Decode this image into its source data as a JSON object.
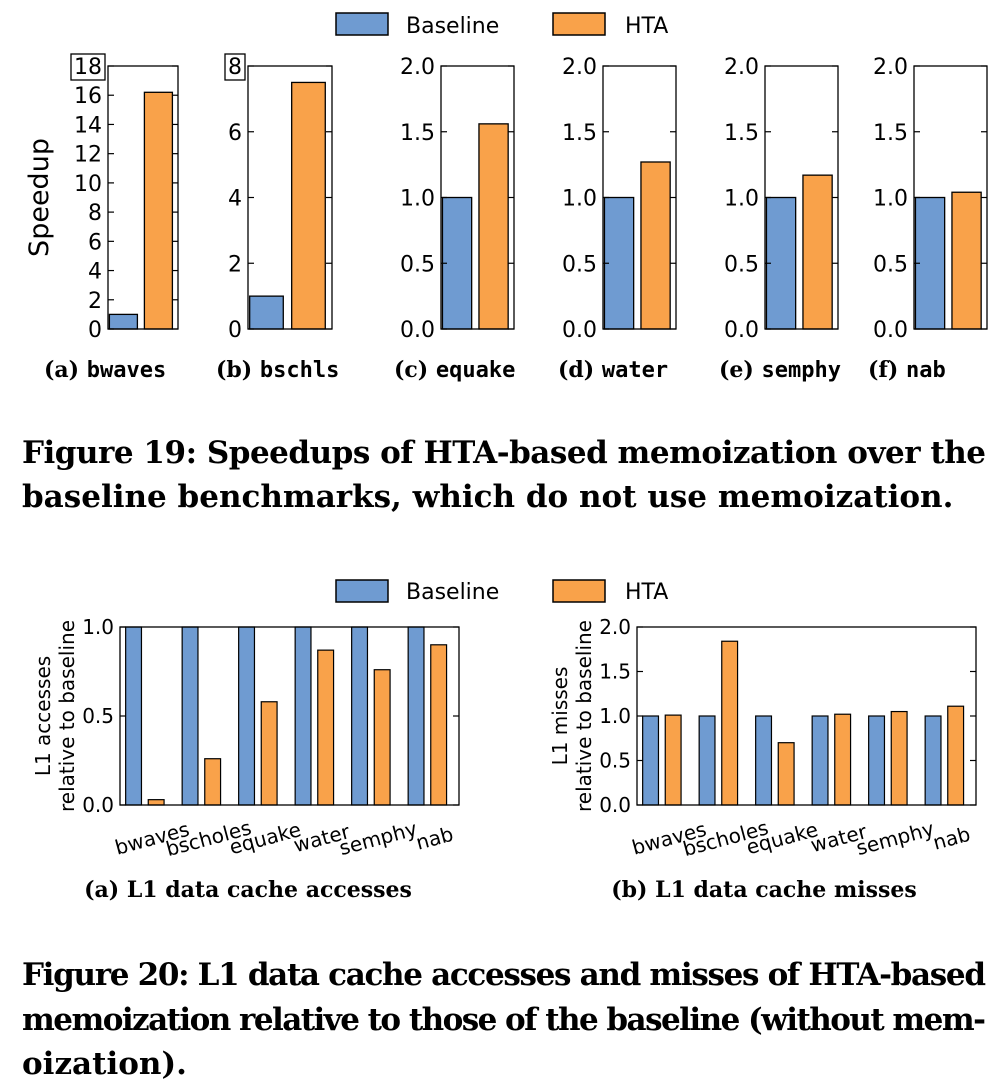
{
  "colors": {
    "baseline": "#6f9bd1",
    "hta": "#f9a24a",
    "stroke": "#000000"
  },
  "figure19": {
    "legend": {
      "baseline": "Baseline",
      "hta": "HTA"
    },
    "caption_line1": "Figure 19: Speedups of HTA-based memoization over the",
    "caption_line2": "baseline benchmarks, which do not use memoization."
  },
  "figure20": {
    "legend": {
      "baseline": "Baseline",
      "hta": "HTA"
    },
    "caption_line1": "Figure 20: L1 data cache accesses and misses of HTA-based",
    "caption_line2": "memoization relative to those of the baseline (without mem-",
    "caption_line3": "oization)."
  },
  "chart_data": [
    {
      "type": "bar",
      "subcaption_prefix": "(a)",
      "subcaption_name": "bwaves",
      "ylabel": "Speedup",
      "ylim": [
        0,
        18
      ],
      "yticks": [
        "0",
        "2",
        "4",
        "6",
        "8",
        "10",
        "12",
        "14",
        "16",
        "18"
      ],
      "boxed_top_tick": true,
      "series": [
        {
          "name": "Baseline",
          "values": [
            1.0
          ]
        },
        {
          "name": "HTA",
          "values": [
            16.2
          ]
        }
      ]
    },
    {
      "type": "bar",
      "subcaption_prefix": "(b)",
      "subcaption_name": "bschls",
      "ylabel": "",
      "ylim": [
        0,
        8
      ],
      "yticks": [
        "0",
        "2",
        "4",
        "6",
        "8"
      ],
      "boxed_top_tick": true,
      "series": [
        {
          "name": "Baseline",
          "values": [
            1.0
          ]
        },
        {
          "name": "HTA",
          "values": [
            7.5
          ]
        }
      ]
    },
    {
      "type": "bar",
      "subcaption_prefix": "(c)",
      "subcaption_name": "equake",
      "ylabel": "",
      "ylim": [
        0,
        2
      ],
      "yticks": [
        "0.0",
        "0.5",
        "1.0",
        "1.5",
        "2.0"
      ],
      "boxed_top_tick": false,
      "series": [
        {
          "name": "Baseline",
          "values": [
            1.0
          ]
        },
        {
          "name": "HTA",
          "values": [
            1.56
          ]
        }
      ]
    },
    {
      "type": "bar",
      "subcaption_prefix": "(d)",
      "subcaption_name": "water",
      "ylabel": "",
      "ylim": [
        0,
        2
      ],
      "yticks": [
        "0.0",
        "0.5",
        "1.0",
        "1.5",
        "2.0"
      ],
      "boxed_top_tick": false,
      "series": [
        {
          "name": "Baseline",
          "values": [
            1.0
          ]
        },
        {
          "name": "HTA",
          "values": [
            1.27
          ]
        }
      ]
    },
    {
      "type": "bar",
      "subcaption_prefix": "(e)",
      "subcaption_name": "semphy",
      "ylabel": "",
      "ylim": [
        0,
        2
      ],
      "yticks": [
        "0.0",
        "0.5",
        "1.0",
        "1.5",
        "2.0"
      ],
      "boxed_top_tick": false,
      "series": [
        {
          "name": "Baseline",
          "values": [
            1.0
          ]
        },
        {
          "name": "HTA",
          "values": [
            1.17
          ]
        }
      ]
    },
    {
      "type": "bar",
      "subcaption_prefix": "(f)",
      "subcaption_name": "nab",
      "ylabel": "",
      "ylim": [
        0,
        2
      ],
      "yticks": [
        "0.0",
        "0.5",
        "1.0",
        "1.5",
        "2.0"
      ],
      "boxed_top_tick": false,
      "series": [
        {
          "name": "Baseline",
          "values": [
            1.0
          ]
        },
        {
          "name": "HTA",
          "values": [
            1.04
          ]
        }
      ]
    },
    {
      "type": "bar",
      "subcaption": "(a) L1 data cache accesses",
      "ylabel_line1": "L1 accesses",
      "ylabel_line2": "relative to baseline",
      "ylim": [
        0,
        1.0
      ],
      "yticks": [
        "0.0",
        "0.5",
        "1.0"
      ],
      "categories": [
        "bwaves",
        "bscholes",
        "equake",
        "water",
        "semphy",
        "nab"
      ],
      "series": [
        {
          "name": "Baseline",
          "values": [
            1.0,
            1.0,
            1.0,
            1.0,
            1.0,
            1.0
          ]
        },
        {
          "name": "HTA",
          "values": [
            0.03,
            0.26,
            0.58,
            0.87,
            0.76,
            0.9
          ]
        }
      ]
    },
    {
      "type": "bar",
      "subcaption": "(b) L1 data cache misses",
      "ylabel_line1": "L1 misses",
      "ylabel_line2": "relative to baseline",
      "ylim": [
        0,
        2.0
      ],
      "yticks": [
        "0.0",
        "0.5",
        "1.0",
        "1.5",
        "2.0"
      ],
      "categories": [
        "bwaves",
        "bscholes",
        "equake",
        "water",
        "semphy",
        "nab"
      ],
      "series": [
        {
          "name": "Baseline",
          "values": [
            1.0,
            1.0,
            1.0,
            1.0,
            1.0,
            1.0
          ]
        },
        {
          "name": "HTA",
          "values": [
            1.01,
            1.84,
            0.7,
            1.02,
            1.05,
            1.11
          ]
        }
      ]
    }
  ]
}
